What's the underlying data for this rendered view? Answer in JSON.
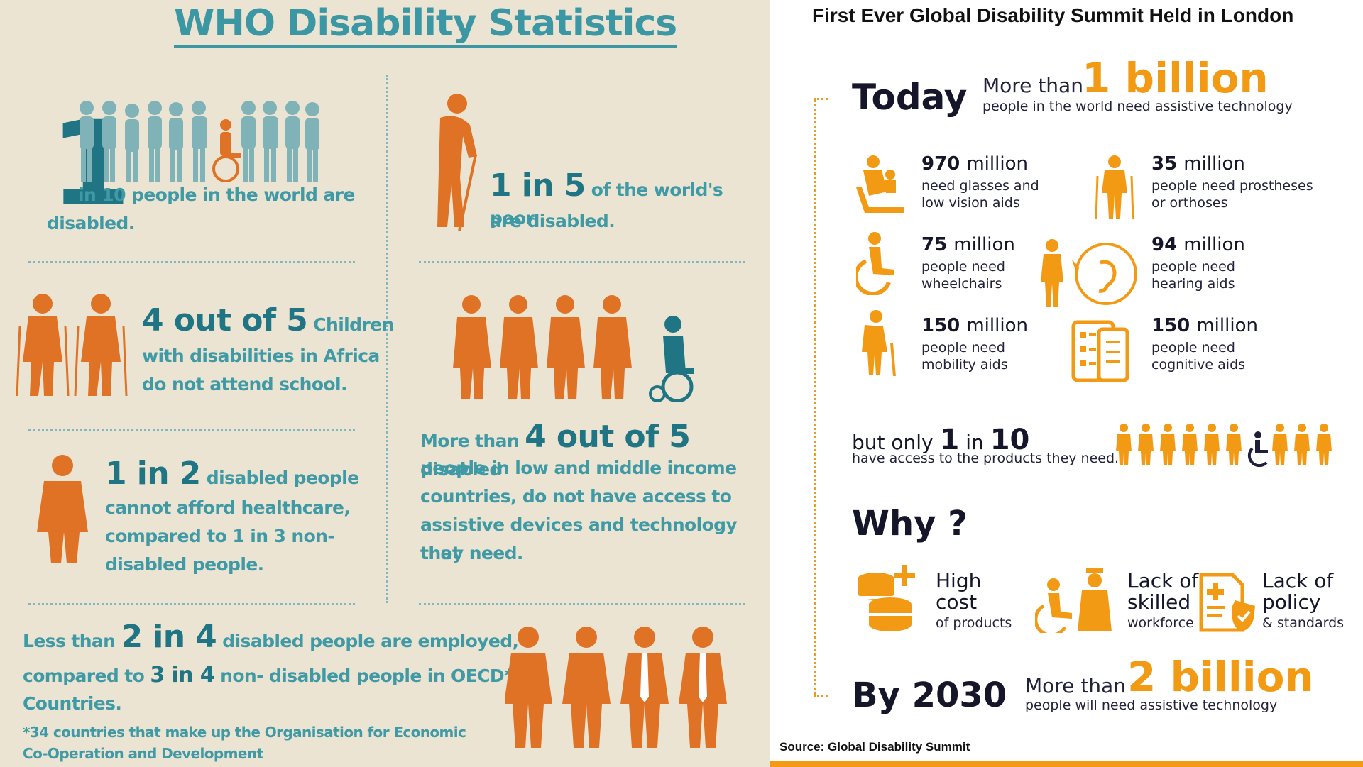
{
  "left": {
    "title": "WHO Disability Statistics",
    "stat1": {
      "num": "1",
      "text1": "in 10 people in the world are",
      "text2": "disabled."
    },
    "stat2": {
      "num": "1 in 5",
      "text1": "of the world's poor",
      "text2": "are disabled."
    },
    "stat3": {
      "num": "4 out of 5",
      "text1": "Children",
      "text2": "with disabilities in Africa",
      "text3": "do not attend school."
    },
    "stat4": {
      "prefix": "More than",
      "num": "4 out of 5",
      "text1": "disabled",
      "text2": "people in low and middle income",
      "text3": "countries, do not have access to",
      "text4": "assistive devices and technology that",
      "text5": "they need."
    },
    "stat5": {
      "num": "1 in 2",
      "text1": "disabled people",
      "text2": "cannot afford healthcare,",
      "text3": "compared to 1 in 3 non-",
      "text4": "disabled people."
    },
    "stat6": {
      "prefix": "Less than",
      "num": "2 in 4",
      "text1": "disabled people are employed,",
      "text2a": "compared to",
      "num2": "3 in 4",
      "text2b": "non- disabled people in OECD*",
      "text3": "Countries.",
      "foot1": "*34 countries that make up the Organisation for Economic",
      "foot2": "Co-Operation and Development"
    }
  },
  "right": {
    "title": "First Ever Global Disability Summit Held in London",
    "today": {
      "label": "Today",
      "prefix": "More than",
      "num": "1 billion",
      "sub": "people  in the world need assistive technology"
    },
    "items": [
      {
        "num": "970",
        "unit": "million",
        "l1": "need glasses and",
        "l2": "low vision aids",
        "icon": "mother-child-icon"
      },
      {
        "num": "35",
        "unit": "million",
        "l1": "people need prostheses",
        "l2": "or orthoses",
        "icon": "prosthesis-icon"
      },
      {
        "num": "75",
        "unit": "million",
        "l1": "people need",
        "l2": "wheelchairs",
        "icon": "wheelchair-icon"
      },
      {
        "num": "94",
        "unit": "million",
        "l1": "people need",
        "l2": "hearing aids",
        "icon": "hearing-icon"
      },
      {
        "num": "150",
        "unit": "million",
        "l1": "people need",
        "l2": "mobility aids",
        "icon": "elderly-cane-icon"
      },
      {
        "num": "150",
        "unit": "million",
        "l1": "people need",
        "l2": "cognitive aids",
        "icon": "tablet-checklist-icon"
      }
    ],
    "access": {
      "prefix": "but only",
      "n1": "1",
      "mid": "in",
      "n2": "10",
      "sub": "have access to the products they need."
    },
    "why": {
      "label": "Why ?",
      "reasons": [
        {
          "l1": "High",
          "l2": "cost",
          "l3": "of products"
        },
        {
          "l1": "Lack of",
          "l2": "skilled",
          "l3": "workforce"
        },
        {
          "l1": "Lack of",
          "l2": "policy",
          "l3": "& standards"
        }
      ]
    },
    "by2030": {
      "label": "By 2030",
      "prefix": "More than",
      "num": "2 billion",
      "sub": "people will need assistive technology"
    },
    "source": "Source: Global Disability Summit"
  },
  "colors": {
    "teal": "#2e8a96",
    "orange": "#e07226",
    "accent": "#f39a14",
    "beige": "#ece4d2"
  }
}
